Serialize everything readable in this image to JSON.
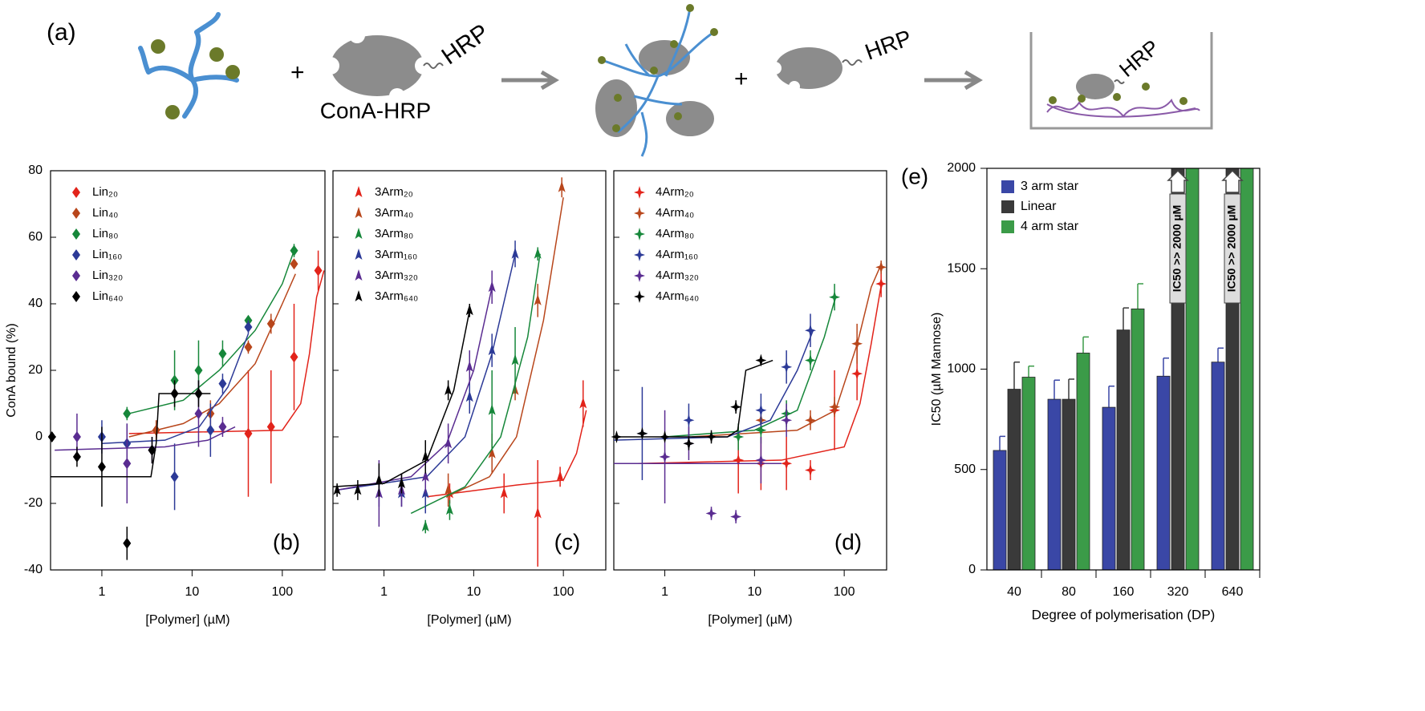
{
  "panel_a": {
    "label": "(a)",
    "plus": [
      "+",
      "+"
    ],
    "hrp": [
      "HRP",
      "HRP",
      "HRP"
    ],
    "conjugate": "ConA-HRP"
  },
  "chart_data": [
    {
      "type": "scatter",
      "panel_label": "(b)",
      "xlabel": "[Polymer] (µM)",
      "ylabel": "ConA bound (%)",
      "xscale": "log",
      "xlim": [
        0.27,
        297
      ],
      "xticks": [
        1,
        10,
        100
      ],
      "ylim": [
        -40,
        80
      ],
      "yticks": [
        -40,
        -20,
        0,
        20,
        40,
        60,
        80
      ],
      "show_ytick_labels": true,
      "marker": "diamond",
      "legend": "upper left",
      "series": [
        {
          "name": "Lin₂₀",
          "color": "#e2231a",
          "x": [
            42,
            75,
            135,
            250
          ],
          "values": [
            1,
            3,
            24,
            50
          ],
          "errors": [
            19,
            17,
            16,
            6
          ],
          "fit": {
            "x": [
              2,
              100,
              160,
              200,
              240,
              290
            ],
            "y": [
              1,
              2,
              10,
              25,
              42,
              50
            ]
          }
        },
        {
          "name": "Lin₄₀",
          "color": "#b8461b",
          "x": [
            4,
            16,
            42,
            75,
            135
          ],
          "values": [
            2,
            7,
            27,
            34,
            52
          ],
          "errors": [
            3,
            4,
            2,
            3,
            1
          ],
          "fit": {
            "x": [
              2,
              8,
              20,
              50,
              100,
              140
            ],
            "y": [
              0,
              4,
              10,
              22,
              40,
              49
            ]
          }
        },
        {
          "name": "Lin₈₀",
          "color": "#16873a",
          "x": [
            1.9,
            6.4,
            11.8,
            21.8,
            42,
            135
          ],
          "values": [
            7,
            17,
            20,
            25,
            35,
            56
          ],
          "errors": [
            2,
            9,
            9,
            4,
            1,
            2
          ],
          "fit": {
            "x": [
              2,
              8,
              20,
              50,
              100,
              135
            ],
            "y": [
              7,
              11,
              20,
              32,
              46,
              56
            ]
          }
        },
        {
          "name": "Lin₁₆₀",
          "color": "#2c3a97",
          "x": [
            1,
            1.9,
            6.4,
            16,
            21.8,
            42
          ],
          "values": [
            0,
            -2,
            -12,
            2,
            16,
            33
          ],
          "errors": [
            5,
            6,
            10,
            8,
            3,
            2
          ],
          "fit": {
            "x": [
              1,
              5,
              12,
              25,
              42
            ],
            "y": [
              -2,
              -1,
              3,
              15,
              31
            ]
          }
        },
        {
          "name": "Lin₃₂₀",
          "color": "#5a2c91",
          "x": [
            0.53,
            1.9,
            3.6,
            11.8,
            21.8
          ],
          "values": [
            0,
            -8,
            -4,
            7,
            3
          ],
          "errors": [
            7,
            12,
            4,
            10,
            3
          ],
          "fit": {
            "x": [
              0.3,
              5,
              15,
              30
            ],
            "y": [
              -4,
              -3,
              -1,
              3
            ]
          }
        },
        {
          "name": "Lin₆₄₀",
          "color": "#000000",
          "x": [
            0.28,
            0.53,
            1,
            1.9,
            3.6,
            6.4,
            11.8
          ],
          "values": [
            0,
            -6,
            -9,
            -32,
            -4,
            13,
            13
          ],
          "errors": [
            0.5,
            3,
            12,
            5,
            4,
            4,
            4
          ],
          "fit": {
            "x": [
              0.27,
              3.5,
              4,
              4.3,
              16
            ],
            "y": [
              -12,
              -12,
              -2,
              13,
              13
            ]
          }
        }
      ]
    },
    {
      "type": "scatter",
      "panel_label": "(c)",
      "xlabel": "[Polymer] (µM)",
      "xscale": "log",
      "xlim": [
        0.27,
        297
      ],
      "xticks": [
        1,
        10,
        100
      ],
      "ylim": [
        -40,
        80
      ],
      "yticks": [
        -40,
        -20,
        0,
        20,
        40,
        60,
        80
      ],
      "show_ytick_labels": false,
      "marker": "triangle",
      "legend": "upper left",
      "series": [
        {
          "name": "3Arm₂₀",
          "color": "#e2231a",
          "x": [
            5.4,
            21.8,
            51.8,
            92,
            166
          ],
          "values": [
            -17,
            -17,
            -23,
            -12,
            10
          ],
          "errors": [
            3,
            6,
            16,
            3,
            7
          ],
          "fit": {
            "x": [
              3,
              30,
              100,
              140,
              180
            ],
            "y": [
              -18,
              -14.5,
              -13,
              -5,
              8
            ]
          }
        },
        {
          "name": "3Arm₄₀",
          "color": "#b8461b",
          "x": [
            5.2,
            16,
            29,
            51.8,
            96
          ],
          "values": [
            -16,
            -5,
            14,
            41,
            75
          ],
          "errors": [
            5,
            6,
            3,
            5,
            3
          ],
          "fit": {
            "x": [
              5,
              15,
              30,
              60,
              100
            ],
            "y": [
              -18,
              -12,
              0,
              35,
              72
            ]
          }
        },
        {
          "name": "3Arm₈₀",
          "color": "#16873a",
          "x": [
            2.9,
            5.4,
            16,
            29,
            51.8
          ],
          "values": [
            -27,
            -22,
            8,
            23,
            55
          ],
          "errors": [
            2,
            3,
            12,
            10,
            2
          ],
          "fit": {
            "x": [
              2,
              8,
              20,
              40,
              55
            ],
            "y": [
              -23,
              -15,
              0,
              30,
              55
            ]
          }
        },
        {
          "name": "3Arm₁₆₀",
          "color": "#2c3a97",
          "x": [
            0.88,
            1.57,
            2.9,
            9,
            16,
            29
          ],
          "values": [
            -17,
            -17,
            -17,
            12,
            26,
            55
          ],
          "errors": [
            4,
            4,
            6,
            5,
            5,
            4
          ],
          "fit": {
            "x": [
              0.3,
              3,
              8,
              16,
              29
            ],
            "y": [
              -16,
              -12,
              0,
              25,
              55
            ]
          }
        },
        {
          "name": "3Arm₃₂₀",
          "color": "#5a2c91",
          "x": [
            0.88,
            1.57,
            2.9,
            5.2,
            9,
            16
          ],
          "values": [
            -17,
            -16,
            -12,
            -2,
            21,
            45
          ],
          "errors": [
            10,
            5,
            5,
            6,
            5,
            5
          ],
          "fit": {
            "x": [
              0.3,
              2,
              5,
              10,
              16
            ],
            "y": [
              -16,
              -12,
              -2,
              20,
              45
            ]
          }
        },
        {
          "name": "3Arm₆₄₀",
          "color": "#000000",
          "x": [
            0.3,
            0.51,
            0.88,
            1.57,
            2.9,
            5.2,
            9
          ],
          "values": [
            -16,
            -16,
            -13,
            -14,
            -6,
            14,
            38
          ],
          "errors": [
            2,
            3,
            5,
            3,
            5,
            3,
            2
          ],
          "fit": {
            "x": [
              0.27,
              1,
              3,
              6,
              9
            ],
            "y": [
              -15,
              -14,
              -7,
              14,
              38
            ]
          }
        }
      ]
    },
    {
      "type": "scatter",
      "panel_label": "(d)",
      "xlabel": "[Polymer] (µM)",
      "xscale": "log",
      "xlim": [
        0.27,
        297
      ],
      "xticks": [
        1,
        10,
        100
      ],
      "ylim": [
        -40,
        80
      ],
      "yticks": [
        -40,
        -20,
        0,
        20,
        40,
        60,
        80
      ],
      "show_ytick_labels": false,
      "marker": "star",
      "legend": "upper left",
      "series": [
        {
          "name": "4Arm₂₀",
          "color": "#e2231a",
          "x": [
            6.6,
            11.8,
            22.7,
            42,
            78,
            139,
            258
          ],
          "values": [
            -7,
            -8,
            -8,
            -10,
            8,
            19,
            46
          ],
          "errors": [
            10,
            8,
            8,
            3,
            12,
            8,
            4
          ],
          "fit": {
            "x": [
              0.5,
              20,
              100,
              150,
              200,
              260
            ],
            "y": [
              -8,
              -7,
              -3,
              10,
              28,
              46
            ]
          }
        },
        {
          "name": "4Arm₄₀",
          "color": "#b8461b",
          "x": [
            11.8,
            42,
            78,
            139,
            258
          ],
          "values": [
            5,
            5,
            9,
            28,
            51
          ],
          "errors": [
            3,
            3,
            3,
            6,
            2
          ],
          "fit": {
            "x": [
              2,
              30,
              80,
              140,
              200,
              250
            ],
            "y": [
              0,
              2,
              8,
              28,
              45,
              51
            ]
          }
        },
        {
          "name": "4Arm₈₀",
          "color": "#16873a",
          "x": [
            6.6,
            11.8,
            22.7,
            42,
            78
          ],
          "values": [
            0,
            2,
            7,
            23,
            42
          ],
          "errors": [
            4,
            4,
            4,
            3,
            4
          ],
          "fit": {
            "x": [
              1,
              10,
              30,
              60,
              80
            ],
            "y": [
              0,
              2,
              8,
              30,
              42
            ]
          }
        },
        {
          "name": "4Arm₁₆₀",
          "color": "#2c3a97",
          "x": [
            0.56,
            1.85,
            11.8,
            22.7,
            42
          ],
          "values": [
            1,
            5,
            8,
            21,
            32
          ],
          "errors": [
            14,
            5,
            5,
            5,
            5
          ],
          "fit": {
            "x": [
              0.27,
              5,
              15,
              30,
              45
            ],
            "y": [
              -1,
              0,
              5,
              20,
              32
            ]
          }
        },
        {
          "name": "4Arm₃₂₀",
          "color": "#5a2c91",
          "x": [
            1,
            1.85,
            3.3,
            6.2,
            11.8,
            22.7
          ],
          "values": [
            -6,
            -2,
            -23,
            -24,
            -7,
            5
          ],
          "errors": [
            14,
            5,
            2,
            2,
            7,
            5
          ],
          "fit": {
            "x": [
              0.27,
              20
            ],
            "y": [
              -8,
              -8
            ]
          }
        },
        {
          "name": "4Arm₆₄₀",
          "color": "#000000",
          "x": [
            0.29,
            0.56,
            1,
            1.85,
            3.3,
            6.2,
            11.8
          ],
          "values": [
            0,
            1,
            0,
            -2,
            0,
            9,
            23
          ],
          "errors": [
            1,
            1,
            1,
            2,
            2,
            2,
            1
          ],
          "fit": {
            "x": [
              0.27,
              5,
              6.5,
              8,
              16
            ],
            "y": [
              0,
              0,
              2,
              20,
              23
            ]
          }
        }
      ]
    },
    {
      "type": "bar",
      "panel_label": "(e)",
      "xlabel": "Degree of polymerisation (DP)",
      "ylabel": "IC50 (µM Mannose)",
      "categories": [
        "40",
        "80",
        "160",
        "320",
        "640"
      ],
      "ylim": [
        0,
        2000
      ],
      "yticks": [
        0,
        500,
        1000,
        1500,
        2000
      ],
      "legend": "upper left",
      "annotations": [
        "IC50 >> 2000 µM",
        "IC50 >> 2000 µM"
      ],
      "series": [
        {
          "name": "3 arm star",
          "color": "#3a47a6",
          "values": [
            595,
            850,
            810,
            965,
            1035
          ],
          "errors": [
            70,
            95,
            105,
            90,
            70
          ]
        },
        {
          "name": "Linear",
          "color": "#3a3a3a",
          "values": [
            900,
            850,
            1195,
            2000,
            2000
          ],
          "errors": [
            135,
            100,
            110,
            null,
            null
          ]
        },
        {
          "name": "4 arm star",
          "color": "#3b9b48",
          "values": [
            960,
            1080,
            1300,
            2000,
            2000
          ],
          "errors": [
            55,
            80,
            125,
            null,
            null
          ]
        }
      ]
    }
  ]
}
